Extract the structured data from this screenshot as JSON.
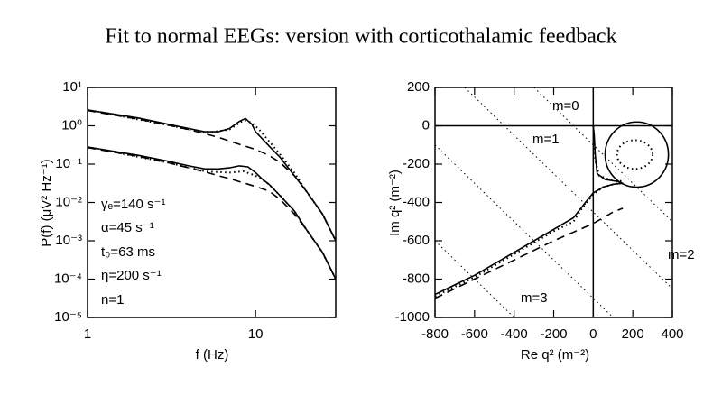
{
  "title": "Fit to normal EEGs: version with corticothalamic feedback",
  "chart_data": [
    {
      "type": "line",
      "log_x": true,
      "log_y": true,
      "xlabel": "f (Hz)",
      "ylabel": "P(f) (μV² Hz⁻¹)",
      "xlim": [
        1,
        30
      ],
      "xticks": [
        1,
        10
      ],
      "ylim": [
        1e-05,
        10
      ],
      "yticks": [
        {
          "value": 1e-05,
          "label": "10⁻⁵"
        },
        {
          "value": 0.0001,
          "label": "10⁻⁴"
        },
        {
          "value": 0.001,
          "label": "10⁻³"
        },
        {
          "value": 0.01,
          "label": "10⁻²"
        },
        {
          "value": 0.1,
          "label": "10⁻¹"
        },
        {
          "value": 1,
          "label": "10⁰"
        },
        {
          "value": 10,
          "label": "10¹"
        }
      ],
      "annotations": [
        "γₑ=140 s⁻¹",
        "α=45 s⁻¹",
        "t₀=63 ms",
        "η=200 s⁻¹",
        "n=1"
      ],
      "series": [
        {
          "dash": "solid",
          "color": "#000",
          "x": [
            1,
            2,
            3,
            4,
            5,
            6,
            7,
            8,
            8.7,
            9.5,
            10,
            11,
            12,
            14,
            17,
            20,
            25,
            30
          ],
          "values": [
            2.6,
            1.6,
            1.1,
            0.85,
            0.7,
            0.7,
            0.85,
            1.3,
            1.55,
            1.1,
            0.7,
            0.45,
            0.3,
            0.15,
            0.05,
            0.02,
            0.005,
            0.001
          ]
        },
        {
          "dash": "dashed",
          "color": "#000",
          "x": [
            1,
            2,
            3,
            4,
            5,
            6,
            7,
            8,
            9,
            10,
            11,
            12,
            14,
            17,
            20,
            25,
            30
          ],
          "values": [
            2.5,
            1.5,
            1.05,
            0.8,
            0.62,
            0.5,
            0.4,
            0.33,
            0.28,
            0.24,
            0.2,
            0.17,
            0.11,
            0.05,
            0.02,
            0.005,
            0.001
          ]
        },
        {
          "dash": "dotted",
          "color": "#000",
          "x": [
            1,
            3,
            5,
            7,
            8.5,
            9.5,
            10.5,
            12,
            14,
            17,
            20,
            25,
            30
          ],
          "values": [
            2.6,
            1.05,
            0.65,
            0.8,
            1.4,
            1.2,
            0.8,
            0.4,
            0.18,
            0.06,
            0.02,
            0.005,
            0.001
          ]
        },
        {
          "dash": "solid",
          "color": "#000",
          "x": [
            1,
            2,
            3,
            4,
            5,
            6,
            7,
            8,
            9,
            10,
            11,
            12,
            14,
            17,
            20,
            25,
            30
          ],
          "values": [
            0.28,
            0.17,
            0.12,
            0.09,
            0.075,
            0.075,
            0.08,
            0.09,
            0.085,
            0.06,
            0.04,
            0.03,
            0.015,
            0.006,
            0.002,
            0.0005,
            0.0001
          ]
        },
        {
          "dash": "dashed",
          "color": "#000",
          "x": [
            1,
            2,
            3,
            4,
            5,
            6,
            7,
            8,
            9,
            10,
            12,
            14,
            17,
            20,
            25,
            30
          ],
          "values": [
            0.27,
            0.16,
            0.11,
            0.08,
            0.063,
            0.05,
            0.042,
            0.035,
            0.03,
            0.026,
            0.02,
            0.012,
            0.005,
            0.002,
            0.0005,
            0.0001
          ]
        },
        {
          "dash": "dotted",
          "color": "#000",
          "x": [
            1,
            3,
            5,
            7,
            8.5,
            10,
            12,
            14,
            17,
            20,
            25,
            30
          ],
          "values": [
            0.28,
            0.11,
            0.065,
            0.06,
            0.065,
            0.05,
            0.03,
            0.015,
            0.006,
            0.002,
            0.0005,
            0.0001
          ]
        }
      ]
    },
    {
      "type": "line",
      "log_x": false,
      "log_y": false,
      "xlabel": "Re q² (m⁻²)",
      "ylabel": "Im q² (m⁻²)",
      "xlim": [
        -800,
        400
      ],
      "xticks": [
        -800,
        -600,
        -400,
        -200,
        0,
        200,
        400
      ],
      "ylim": [
        -1000,
        200
      ],
      "yticks": [
        -1000,
        -800,
        -600,
        -400,
        -200,
        0,
        200
      ],
      "axis_lines": {
        "x": 0,
        "y": 0
      },
      "annotations": [
        "m=0",
        "m=1",
        "m=2",
        "m=3"
      ],
      "circles": [
        {
          "dash": "solid",
          "cx": 220,
          "cy": -150,
          "rx": 160,
          "ry": 170
        },
        {
          "dash": "dotted",
          "cx": 210,
          "cy": -150,
          "rx": 90,
          "ry": 75
        }
      ],
      "series": [
        {
          "dash": "dotted",
          "color": "#000",
          "x": [
            -300,
            400
          ],
          "values": [
            200,
            -500
          ]
        },
        {
          "dash": "dotted",
          "color": "#000",
          "x": [
            -650,
            400
          ],
          "values": [
            200,
            -850
          ]
        },
        {
          "dash": "dotted",
          "color": "#000",
          "x": [
            -800,
            100
          ],
          "values": [
            -100,
            -1000
          ]
        },
        {
          "dash": "dotted",
          "color": "#000",
          "x": [
            -800,
            -400
          ],
          "values": [
            -600,
            -1000
          ]
        },
        {
          "dash": "solid",
          "color": "#000",
          "x": [
            -800,
            -600,
            -400,
            -200,
            -100,
            -40,
            0,
            50,
            100,
            150,
            120,
            60,
            20,
            10,
            5,
            0
          ],
          "values": [
            -880,
            -780,
            -660,
            -540,
            -480,
            -400,
            -350,
            -320,
            -305,
            -300,
            -290,
            -280,
            -250,
            -150,
            -50,
            0
          ]
        },
        {
          "dash": "dashed",
          "color": "#000",
          "x": [
            -800,
            -600,
            -400,
            -200,
            0,
            100,
            150
          ],
          "values": [
            -900,
            -800,
            -700,
            -600,
            -510,
            -450,
            -430
          ]
        },
        {
          "dash": "dotted",
          "color": "#000",
          "x": [
            -800,
            -600,
            -400,
            -200,
            -100,
            -50,
            0,
            50,
            120,
            150,
            80,
            30,
            10,
            5,
            0
          ],
          "values": [
            -890,
            -790,
            -670,
            -550,
            -500,
            -420,
            -360,
            -320,
            -300,
            -290,
            -280,
            -260,
            -180,
            -80,
            0
          ]
        }
      ]
    }
  ]
}
